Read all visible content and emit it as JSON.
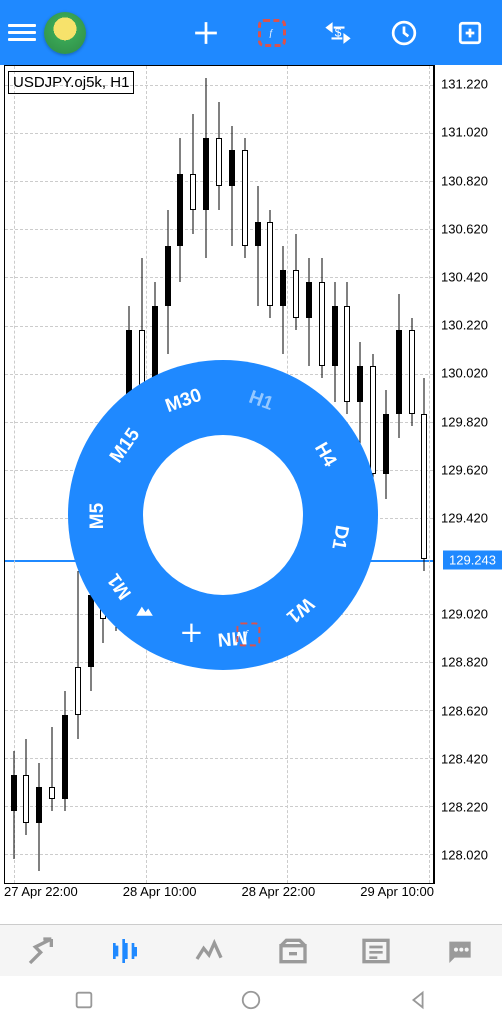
{
  "colors": {
    "primary": "#1f89ff",
    "highlight_border": "#d9534f",
    "grid": "#dddddd",
    "text": "#000000",
    "nav_inactive": "#9a9a9a",
    "candle": "#000000"
  },
  "chart": {
    "title": "USDJPY.oj5k, H1",
    "current_price": "129.243",
    "y_axis": {
      "min": 127.9,
      "max": 131.3,
      "labels": [
        {
          "v": "131.220",
          "p": 131.22
        },
        {
          "v": "131.020",
          "p": 131.02
        },
        {
          "v": "130.820",
          "p": 130.82
        },
        {
          "v": "130.620",
          "p": 130.62
        },
        {
          "v": "130.420",
          "p": 130.42
        },
        {
          "v": "130.220",
          "p": 130.22
        },
        {
          "v": "130.020",
          "p": 130.02
        },
        {
          "v": "129.820",
          "p": 129.82
        },
        {
          "v": "129.620",
          "p": 129.62
        },
        {
          "v": "129.420",
          "p": 129.42
        },
        {
          "v": "129.243",
          "p": 129.243
        },
        {
          "v": "129.020",
          "p": 129.02
        },
        {
          "v": "128.820",
          "p": 128.82
        },
        {
          "v": "128.620",
          "p": 128.62
        },
        {
          "v": "128.420",
          "p": 128.42
        },
        {
          "v": "128.220",
          "p": 128.22
        },
        {
          "v": "128.020",
          "p": 128.02
        }
      ]
    },
    "x_axis": [
      "27 Apr 22:00",
      "28 Apr 10:00",
      "28 Apr 22:00",
      "29 Apr 10:00"
    ],
    "candles": [
      {
        "x": 0.02,
        "o": 128.2,
        "h": 128.45,
        "l": 128.0,
        "c": 128.35,
        "f": true
      },
      {
        "x": 0.05,
        "o": 128.35,
        "h": 128.5,
        "l": 128.1,
        "c": 128.15,
        "f": false
      },
      {
        "x": 0.08,
        "o": 128.15,
        "h": 128.4,
        "l": 127.95,
        "c": 128.3,
        "f": true
      },
      {
        "x": 0.11,
        "o": 128.3,
        "h": 128.55,
        "l": 128.2,
        "c": 128.25,
        "f": false
      },
      {
        "x": 0.14,
        "o": 128.25,
        "h": 128.7,
        "l": 128.2,
        "c": 128.6,
        "f": true
      },
      {
        "x": 0.17,
        "o": 128.6,
        "h": 129.2,
        "l": 128.5,
        "c": 128.8,
        "f": false
      },
      {
        "x": 0.2,
        "o": 128.8,
        "h": 129.15,
        "l": 128.7,
        "c": 129.1,
        "f": true
      },
      {
        "x": 0.23,
        "o": 129.1,
        "h": 129.3,
        "l": 128.9,
        "c": 129.0,
        "f": false
      },
      {
        "x": 0.26,
        "o": 129.0,
        "h": 129.85,
        "l": 128.95,
        "c": 129.7,
        "f": true
      },
      {
        "x": 0.29,
        "o": 129.7,
        "h": 130.3,
        "l": 129.5,
        "c": 130.2,
        "f": true
      },
      {
        "x": 0.32,
        "o": 130.2,
        "h": 130.5,
        "l": 129.8,
        "c": 129.95,
        "f": false
      },
      {
        "x": 0.35,
        "o": 129.95,
        "h": 130.4,
        "l": 129.85,
        "c": 130.3,
        "f": true
      },
      {
        "x": 0.38,
        "o": 130.3,
        "h": 130.7,
        "l": 130.1,
        "c": 130.55,
        "f": true
      },
      {
        "x": 0.41,
        "o": 130.55,
        "h": 131.0,
        "l": 130.4,
        "c": 130.85,
        "f": true
      },
      {
        "x": 0.44,
        "o": 130.85,
        "h": 131.1,
        "l": 130.6,
        "c": 130.7,
        "f": false
      },
      {
        "x": 0.47,
        "o": 130.7,
        "h": 131.25,
        "l": 130.5,
        "c": 131.0,
        "f": true
      },
      {
        "x": 0.5,
        "o": 131.0,
        "h": 131.15,
        "l": 130.7,
        "c": 130.8,
        "f": false
      },
      {
        "x": 0.53,
        "o": 130.8,
        "h": 131.05,
        "l": 130.55,
        "c": 130.95,
        "f": true
      },
      {
        "x": 0.56,
        "o": 130.95,
        "h": 131.0,
        "l": 130.5,
        "c": 130.55,
        "f": false
      },
      {
        "x": 0.59,
        "o": 130.55,
        "h": 130.8,
        "l": 130.3,
        "c": 130.65,
        "f": true
      },
      {
        "x": 0.62,
        "o": 130.65,
        "h": 130.7,
        "l": 130.25,
        "c": 130.3,
        "f": false
      },
      {
        "x": 0.65,
        "o": 130.3,
        "h": 130.55,
        "l": 130.1,
        "c": 130.45,
        "f": true
      },
      {
        "x": 0.68,
        "o": 130.45,
        "h": 130.6,
        "l": 130.2,
        "c": 130.25,
        "f": false
      },
      {
        "x": 0.71,
        "o": 130.25,
        "h": 130.5,
        "l": 130.05,
        "c": 130.4,
        "f": true
      },
      {
        "x": 0.74,
        "o": 130.4,
        "h": 130.5,
        "l": 130.0,
        "c": 130.05,
        "f": false
      },
      {
        "x": 0.77,
        "o": 130.05,
        "h": 130.4,
        "l": 129.9,
        "c": 130.3,
        "f": true
      },
      {
        "x": 0.8,
        "o": 130.3,
        "h": 130.4,
        "l": 129.85,
        "c": 129.9,
        "f": false
      },
      {
        "x": 0.83,
        "o": 129.9,
        "h": 130.15,
        "l": 129.7,
        "c": 130.05,
        "f": true
      },
      {
        "x": 0.86,
        "o": 130.05,
        "h": 130.1,
        "l": 129.55,
        "c": 129.6,
        "f": false
      },
      {
        "x": 0.89,
        "o": 129.6,
        "h": 129.95,
        "l": 129.5,
        "c": 129.85,
        "f": true
      },
      {
        "x": 0.92,
        "o": 129.85,
        "h": 130.35,
        "l": 129.75,
        "c": 130.2,
        "f": true
      },
      {
        "x": 0.95,
        "o": 130.2,
        "h": 130.25,
        "l": 129.8,
        "c": 129.85,
        "f": false
      },
      {
        "x": 0.98,
        "o": 129.85,
        "h": 130.0,
        "l": 129.2,
        "c": 129.25,
        "f": false
      }
    ]
  },
  "radial": {
    "timeframes": [
      {
        "label": "M30",
        "angle": -110,
        "active": false
      },
      {
        "label": "H1",
        "angle": -70,
        "active": true
      },
      {
        "label": "H4",
        "angle": -30,
        "active": false
      },
      {
        "label": "D1",
        "angle": 10,
        "active": false
      },
      {
        "label": "W1",
        "angle": 50,
        "active": false
      },
      {
        "label": "MN",
        "angle": 85,
        "active": false
      },
      {
        "label": "M15",
        "angle": -145,
        "active": false
      },
      {
        "label": "M5",
        "angle": -180,
        "active": false
      },
      {
        "label": "M1",
        "angle": -215,
        "active": false
      }
    ],
    "icons": [
      {
        "name": "mountain-icon",
        "angle": 130
      },
      {
        "name": "crosshair-icon",
        "angle": 105
      },
      {
        "name": "function-icon",
        "angle": 78,
        "highlight": true
      }
    ]
  }
}
